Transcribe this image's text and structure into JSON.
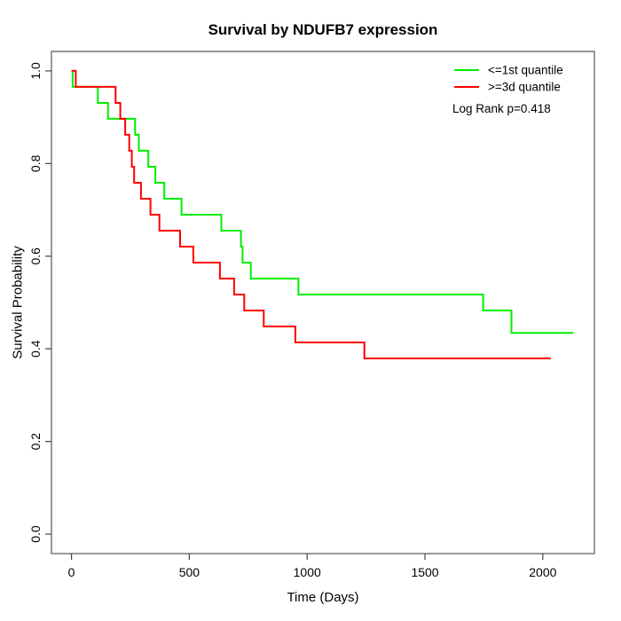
{
  "title": "Survival by NDUFB7 expression",
  "xlabel": "Time (Days)",
  "ylabel": "Survival Probability",
  "annotation": "Log Rank p=0.418",
  "legend": [
    {
      "label": "<=1st quantile",
      "color": "#00ee00"
    },
    {
      "label": ">=3d quantile",
      "color": "#ff0000"
    }
  ],
  "colors": {
    "low_group": "#00ee00",
    "high_group": "#ff0000",
    "box": "#777777",
    "tick": "#444444",
    "text": "#000000",
    "background": "#ffffff"
  },
  "chart_data": {
    "type": "line",
    "subtype": "kaplan-meier-step",
    "title": "Survival by NDUFB7 expression",
    "xlabel": "Time (Days)",
    "ylabel": "Survival Probability",
    "xlim": [
      -85,
      2219
    ],
    "ylim": [
      -0.042,
      1.042
    ],
    "x_ticks": [
      0,
      500,
      1000,
      1500,
      2000
    ],
    "y_ticks": [
      0.0,
      0.2,
      0.4,
      0.6,
      0.8,
      1.0
    ],
    "grid": false,
    "legend_position": "topright",
    "annotation": "Log Rank p=0.418",
    "series": [
      {
        "name": "<=1st quantile",
        "color": "#00ee00",
        "end_time": 2130,
        "steps": [
          [
            0,
            1.0
          ],
          [
            5,
            0.9655
          ],
          [
            112,
            0.931
          ],
          [
            155,
            0.8966
          ],
          [
            270,
            0.8621
          ],
          [
            286,
            0.8276
          ],
          [
            326,
            0.7931
          ],
          [
            356,
            0.7586
          ],
          [
            394,
            0.7241
          ],
          [
            467,
            0.6897
          ],
          [
            636,
            0.6552
          ],
          [
            719,
            0.6207
          ],
          [
            726,
            0.5862
          ],
          [
            761,
            0.5517
          ],
          [
            963,
            0.5172
          ],
          [
            1747,
            0.4828
          ],
          [
            1867,
            0.4345
          ]
        ]
      },
      {
        "name": ">=3d quantile",
        "color": "#ff0000",
        "end_time": 2034,
        "steps": [
          [
            0,
            1.0
          ],
          [
            18,
            0.9655
          ],
          [
            187,
            0.931
          ],
          [
            207,
            0.8966
          ],
          [
            228,
            0.8621
          ],
          [
            245,
            0.8276
          ],
          [
            256,
            0.7931
          ],
          [
            266,
            0.7586
          ],
          [
            295,
            0.7241
          ],
          [
            335,
            0.6897
          ],
          [
            373,
            0.6552
          ],
          [
            461,
            0.6207
          ],
          [
            517,
            0.5862
          ],
          [
            630,
            0.5517
          ],
          [
            690,
            0.5172
          ],
          [
            733,
            0.4828
          ],
          [
            816,
            0.4483
          ],
          [
            950,
            0.4138
          ],
          [
            1243,
            0.3793
          ]
        ]
      }
    ]
  }
}
